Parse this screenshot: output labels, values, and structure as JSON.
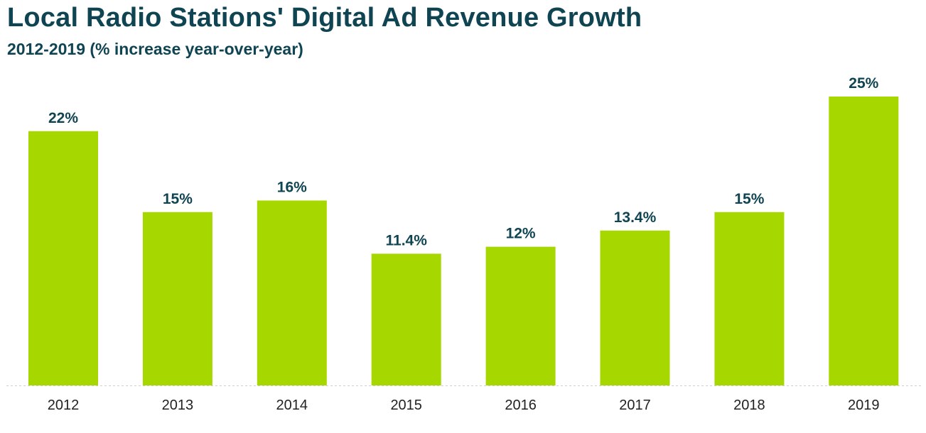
{
  "chart_data": {
    "type": "bar",
    "title": "Local Radio Stations' Digital Ad Revenue Growth",
    "subtitle": "2012-2019 (% increase year-over-year)",
    "categories": [
      "2012",
      "2013",
      "2014",
      "2015",
      "2016",
      "2017",
      "2018",
      "2019"
    ],
    "values": [
      22,
      15,
      16,
      11.4,
      12,
      13.4,
      15,
      25
    ],
    "value_labels": [
      "22%",
      "15%",
      "16%",
      "11.4%",
      "12%",
      "13.4%",
      "15%",
      "25%"
    ],
    "xlabel": "",
    "ylabel": "",
    "ylim": [
      0,
      25
    ],
    "grid": false,
    "bar_color": "#a6d800",
    "text_color": "#0f4452",
    "axis_label_color": "#222222",
    "baseline_color": "#cfcfcf"
  }
}
